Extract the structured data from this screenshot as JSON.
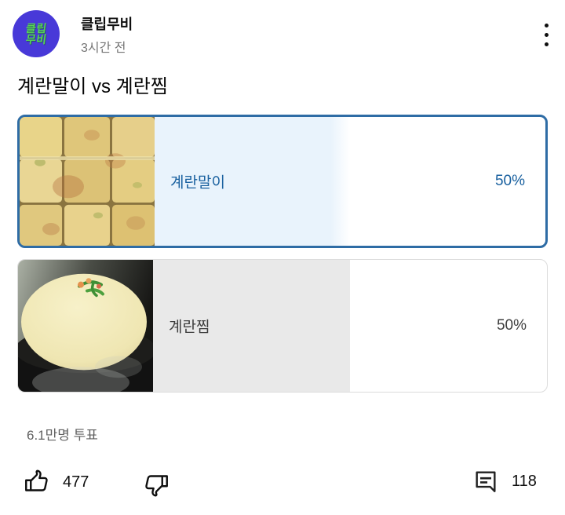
{
  "header": {
    "channel_name": "클립무비",
    "timestamp": "3시간 전",
    "avatar_line1": "클립",
    "avatar_line2": "무비"
  },
  "post": {
    "title": "계란말이 vs 계란찜",
    "votes_text": "6.1만명 투표"
  },
  "poll": {
    "options": [
      {
        "label": "계란말이",
        "percent": "50%",
        "percent_value": 50,
        "selected": true,
        "image": "gyeran-mari-photo"
      },
      {
        "label": "계란찜",
        "percent": "50%",
        "percent_value": 50,
        "selected": false,
        "image": "gyeran-jjim-photo"
      }
    ]
  },
  "actions": {
    "like_count": "477",
    "comment_count": "118"
  },
  "colors": {
    "selected_border": "#2e6ca5",
    "selected_text": "#19609f",
    "selected_fill": "#e9f3fc",
    "unselected_fill": "#e9e9e9",
    "unselected_text": "#3f3f3f",
    "avatar_bg": "#4839d8",
    "avatar_text": "#55d455"
  }
}
